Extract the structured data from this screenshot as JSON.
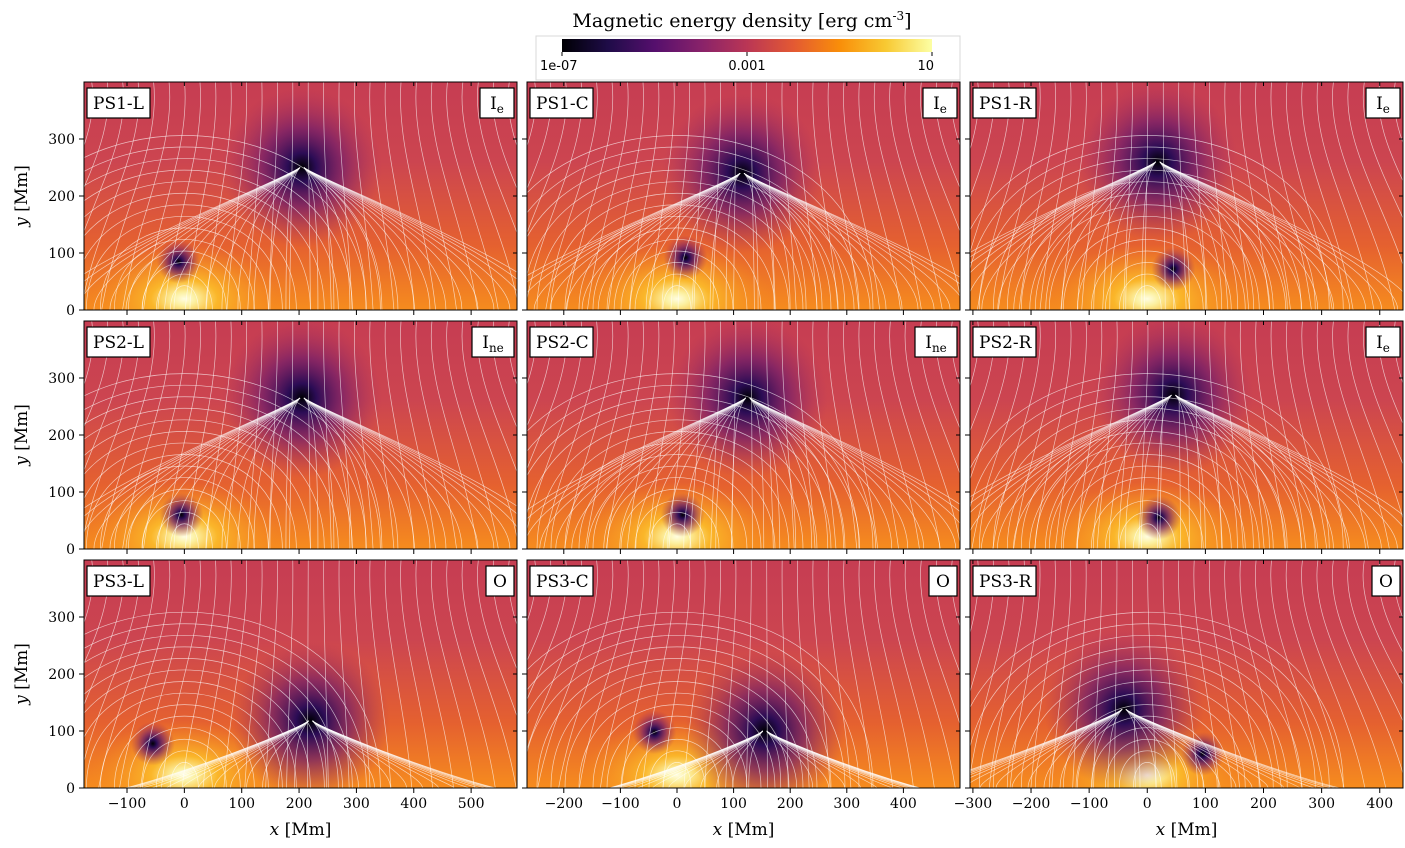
{
  "colorbar": {
    "title": "Magnetic energy density [erg cm",
    "title_sup": "-3",
    "title_end": "]",
    "ticks": [
      "1e-07",
      "0.001",
      "10"
    ],
    "tick_values": [
      -7,
      -3,
      1
    ],
    "range": [
      -7,
      1
    ],
    "scale": "log",
    "colormap": [
      "#000004",
      "#1f0c48",
      "#550f6d",
      "#88226a",
      "#ba3655",
      "#e35933",
      "#f98e09",
      "#f8c932",
      "#fcffa4"
    ]
  },
  "chart_data": [
    {
      "type": "heatmap",
      "panel": "PS1-L",
      "label": "PS1-L",
      "class": "I",
      "class_sub": "e",
      "xlim": [
        -175,
        580
      ],
      "ylim": [
        0,
        400
      ],
      "xticks": [
        -100,
        0,
        100,
        200,
        300,
        400,
        500
      ],
      "yticks": [
        0,
        100,
        200,
        300
      ],
      "xlabel": "",
      "ylabel": "y [Mm]",
      "null_points": [
        {
          "x": 205,
          "y": 250
        },
        {
          "x": -10,
          "y": 85
        }
      ],
      "source": {
        "x": 0,
        "y": 30
      }
    },
    {
      "type": "heatmap",
      "panel": "PS1-C",
      "label": "PS1-C",
      "class": "I",
      "class_sub": "e",
      "xlim": [
        -265,
        500
      ],
      "ylim": [
        0,
        400
      ],
      "xticks": [
        -200,
        -100,
        0,
        100,
        200,
        300,
        400
      ],
      "yticks": [
        0,
        100,
        200,
        300
      ],
      "xlabel": "",
      "ylabel": "",
      "null_points": [
        {
          "x": 115,
          "y": 240
        },
        {
          "x": 15,
          "y": 92
        }
      ],
      "source": {
        "x": 0,
        "y": 30
      }
    },
    {
      "type": "heatmap",
      "panel": "PS1-R",
      "label": "PS1-R",
      "class": "I",
      "class_sub": "e",
      "xlim": [
        -305,
        440
      ],
      "ylim": [
        0,
        400
      ],
      "xticks": [
        -300,
        -200,
        -100,
        0,
        100,
        200,
        300,
        400
      ],
      "yticks": [
        0,
        100,
        200,
        300
      ],
      "xlabel": "",
      "ylabel": "",
      "null_points": [
        {
          "x": 18,
          "y": 260
        },
        {
          "x": 45,
          "y": 72
        }
      ],
      "source": {
        "x": 0,
        "y": 30
      }
    },
    {
      "type": "heatmap",
      "panel": "PS2-L",
      "label": "PS2-L",
      "class": "I",
      "class_sub": "ne",
      "xlim": [
        -175,
        580
      ],
      "ylim": [
        0,
        400
      ],
      "xticks": [
        -100,
        0,
        100,
        200,
        300,
        400,
        500
      ],
      "yticks": [
        0,
        100,
        200,
        300
      ],
      "xlabel": "",
      "ylabel": "y [Mm]",
      "null_points": [
        {
          "x": 205,
          "y": 265
        },
        {
          "x": -5,
          "y": 60
        }
      ],
      "source": {
        "x": 0,
        "y": 32
      }
    },
    {
      "type": "heatmap",
      "panel": "PS2-C",
      "label": "PS2-C",
      "class": "I",
      "class_sub": "ne",
      "xlim": [
        -265,
        500
      ],
      "ylim": [
        0,
        400
      ],
      "xticks": [
        -200,
        -100,
        0,
        100,
        200,
        300,
        400
      ],
      "yticks": [
        0,
        100,
        200,
        300
      ],
      "xlabel": "",
      "ylabel": "",
      "null_points": [
        {
          "x": 125,
          "y": 265
        },
        {
          "x": 10,
          "y": 60
        }
      ],
      "source": {
        "x": 0,
        "y": 32
      }
    },
    {
      "type": "heatmap",
      "panel": "PS2-R",
      "label": "PS2-R",
      "class": "I",
      "class_sub": "e",
      "xlim": [
        -305,
        440
      ],
      "ylim": [
        0,
        400
      ],
      "xticks": [
        -300,
        -200,
        -100,
        0,
        100,
        200,
        300,
        400
      ],
      "yticks": [
        0,
        100,
        200,
        300
      ],
      "xlabel": "",
      "ylabel": "",
      "null_points": [
        {
          "x": 45,
          "y": 270
        },
        {
          "x": 20,
          "y": 55
        }
      ],
      "source": {
        "x": 0,
        "y": 32
      }
    },
    {
      "type": "heatmap",
      "panel": "PS3-L",
      "label": "PS3-L",
      "class": "O",
      "class_sub": "",
      "xlim": [
        -175,
        580
      ],
      "ylim": [
        0,
        400
      ],
      "xticks": [
        -100,
        0,
        100,
        200,
        300,
        400,
        500
      ],
      "yticks": [
        0,
        100,
        200,
        300
      ],
      "xlabel": "x [Mm]",
      "ylabel": "y [Mm]",
      "null_points": [
        {
          "x": 220,
          "y": 118
        },
        {
          "x": -55,
          "y": 78
        }
      ],
      "source": {
        "x": 0,
        "y": 33
      }
    },
    {
      "type": "heatmap",
      "panel": "PS3-C",
      "label": "PS3-C",
      "class": "O",
      "class_sub": "",
      "xlim": [
        -265,
        500
      ],
      "ylim": [
        0,
        400
      ],
      "xticks": [
        -200,
        -100,
        0,
        100,
        200,
        300,
        400
      ],
      "yticks": [
        0,
        100,
        200,
        300
      ],
      "xlabel": "x [Mm]",
      "ylabel": "",
      "null_points": [
        {
          "x": 155,
          "y": 100
        },
        {
          "x": -40,
          "y": 98
        }
      ],
      "source": {
        "x": 0,
        "y": 33
      }
    },
    {
      "type": "heatmap",
      "panel": "PS3-R",
      "label": "PS3-R",
      "class": "O",
      "class_sub": "",
      "xlim": [
        -305,
        440
      ],
      "ylim": [
        0,
        400
      ],
      "xticks": [
        -300,
        -200,
        -100,
        0,
        100,
        200,
        300,
        400
      ],
      "yticks": [
        0,
        100,
        200,
        300
      ],
      "xlabel": "x [Mm]",
      "ylabel": "",
      "null_points": [
        {
          "x": -40,
          "y": 138
        },
        {
          "x": 95,
          "y": 60
        }
      ],
      "source": {
        "x": 0,
        "y": 33
      }
    }
  ]
}
